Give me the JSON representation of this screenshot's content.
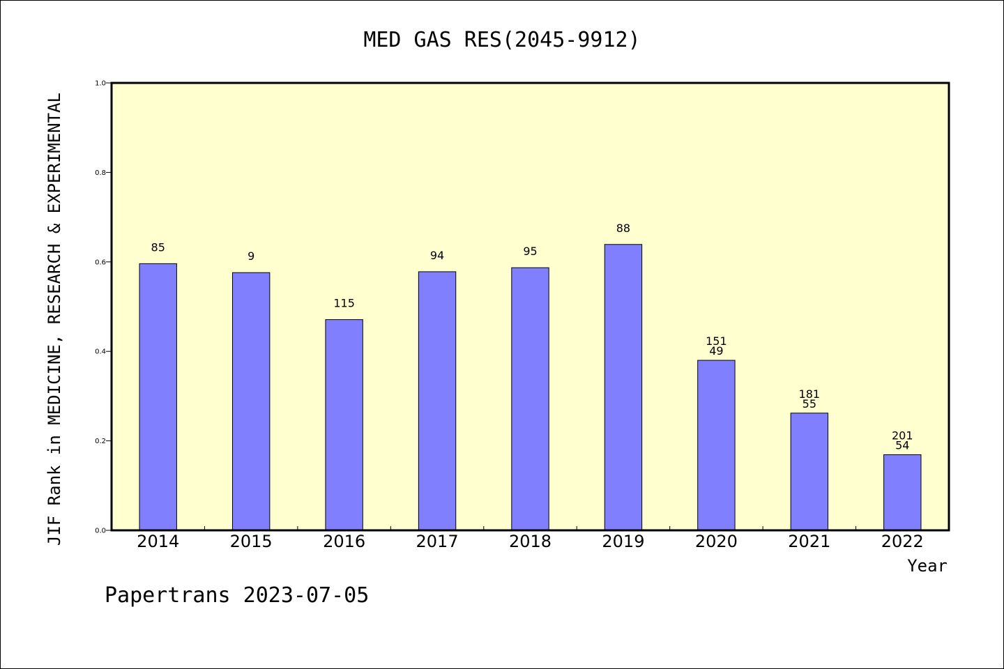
{
  "chart_data": {
    "type": "bar",
    "title": "MED GAS RES(2045-9912)",
    "xlabel": "Year",
    "ylabel": "JIF Rank in MEDICINE, RESEARCH & EXPERIMENTAL",
    "categories": [
      "2014",
      "2015",
      "2016",
      "2017",
      "2018",
      "2019",
      "2020",
      "2021",
      "2022"
    ],
    "values": [
      0.596,
      0.576,
      0.471,
      0.578,
      0.587,
      0.639,
      0.38,
      0.262,
      0.169
    ],
    "bar_labels": [
      [
        "85"
      ],
      [
        "9"
      ],
      [
        "115"
      ],
      [
        "94"
      ],
      [
        "95"
      ],
      [
        "88"
      ],
      [
        "151",
        "49"
      ],
      [
        "181",
        "55"
      ],
      [
        "201",
        "54"
      ]
    ],
    "ylim": [
      0,
      1.0
    ],
    "yticks": [
      "0.0",
      "0.2",
      "0.4",
      "0.6",
      "0.8",
      "1.0"
    ],
    "grid": false,
    "colors": {
      "plot_background": "#FFFFD0",
      "bar_fill": "#8080FF",
      "bar_stroke": "#000000"
    }
  },
  "footer": "Papertrans 2023-07-05"
}
